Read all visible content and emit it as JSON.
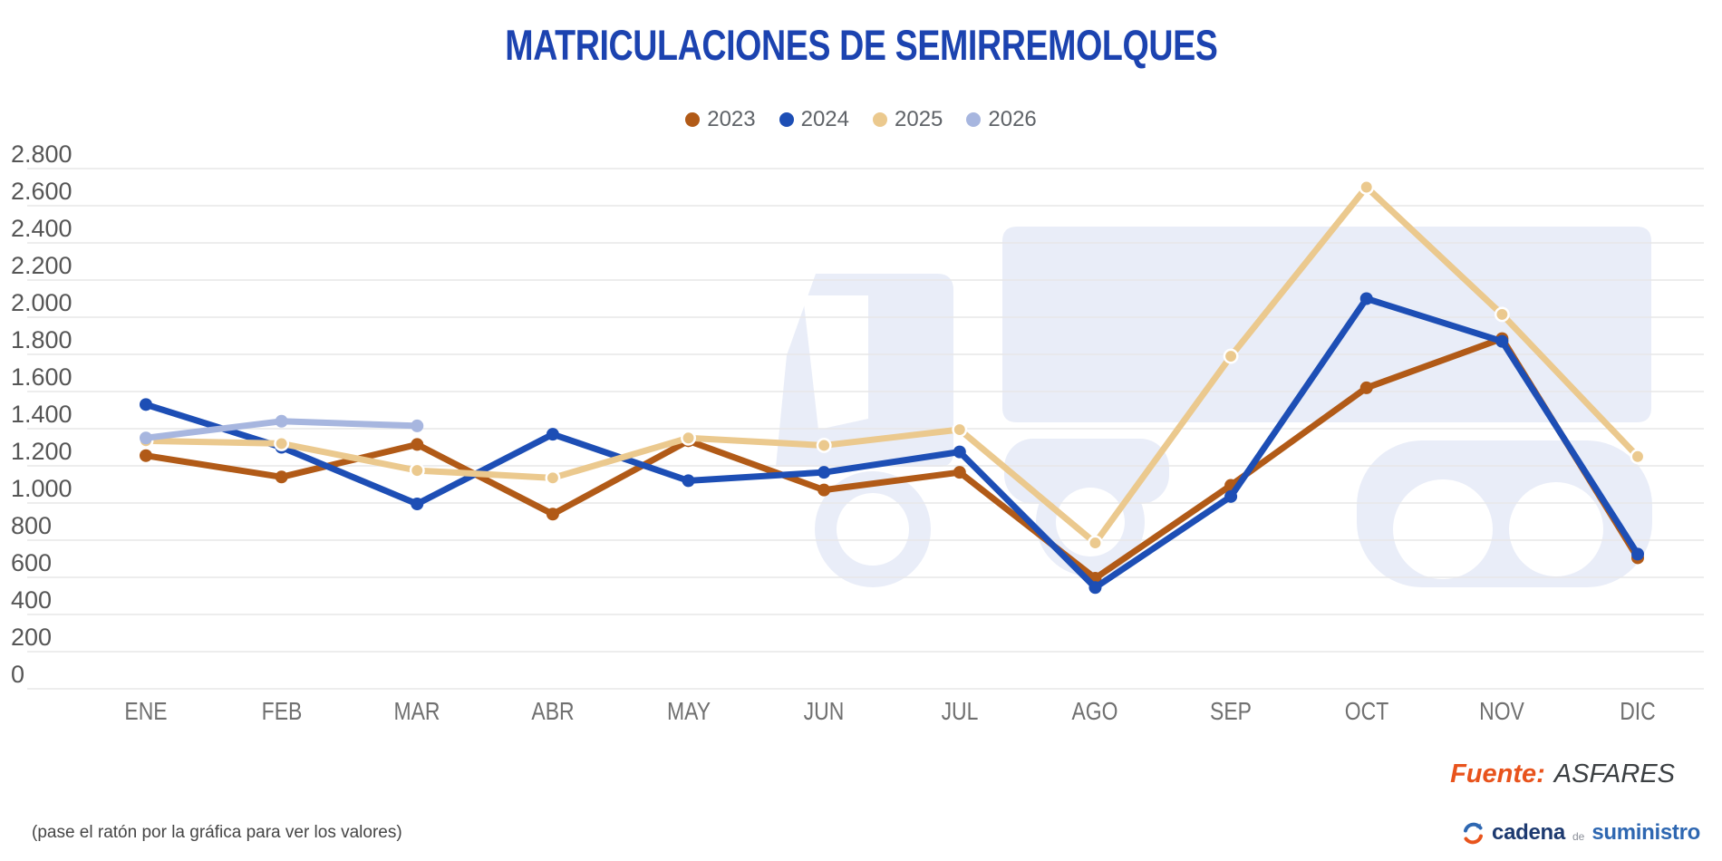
{
  "title": "MATRICULACIONES DE SEMIRREMOLQUES",
  "chart_data": {
    "type": "line",
    "categories": [
      "ENE",
      "FEB",
      "MAR",
      "ABR",
      "MAY",
      "JUN",
      "JUL",
      "AGO",
      "SEP",
      "OCT",
      "NOV",
      "DIC"
    ],
    "series": [
      {
        "name": "2023",
        "color": "#b15a17",
        "values": [
          1255,
          1140,
          1315,
          940,
          1335,
          1070,
          1165,
          595,
          1095,
          1620,
          1885,
          705
        ]
      },
      {
        "name": "2024",
        "color": "#1d4eb5",
        "values": [
          1530,
          1300,
          995,
          1370,
          1120,
          1165,
          1275,
          545,
          1035,
          2100,
          1870,
          725
        ]
      },
      {
        "name": "2025",
        "color": "#ebc98e",
        "point_stroke": "#ffffff",
        "values": [
          1335,
          1320,
          1175,
          1135,
          1350,
          1310,
          1395,
          785,
          1790,
          2700,
          2015,
          1250
        ]
      },
      {
        "name": "2026",
        "color": "#a7b6df",
        "values": [
          1350,
          1440,
          1415,
          null,
          null,
          null,
          null,
          null,
          null,
          null,
          null,
          null
        ]
      }
    ],
    "title": "MATRICULACIONES DE SEMIRREMOLQUES",
    "xlabel": "",
    "ylabel": "",
    "ylim": [
      0,
      2800
    ],
    "ytick_step": 200,
    "yticks_formatted": [
      "0",
      "200",
      "400",
      "600",
      "800",
      "1.000",
      "1.200",
      "1.400",
      "1.600",
      "1.800",
      "2.000",
      "2.200",
      "2.400",
      "2.600",
      "2.800"
    ],
    "grid": true,
    "legend_position": "top",
    "gridline_color": "#e7e7e7",
    "watermark_color": "#e9edf8"
  },
  "source": {
    "prefix": "Fuente:",
    "name": "ASFARES"
  },
  "footnote": "(pase el ratón por la gráfica para ver los valores)",
  "logo": {
    "part1": "cadena",
    "part2": "de",
    "part3": "suministro"
  }
}
